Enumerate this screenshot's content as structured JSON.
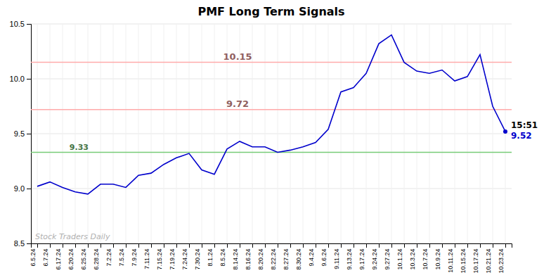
{
  "chart_data": {
    "type": "line",
    "title": "PMF Long Term Signals",
    "color": "#0000cc",
    "grid": true,
    "categories": [
      "6.5.24",
      "6.7.24",
      "6.17.24",
      "6.20.24",
      "6.25.24",
      "6.28.24",
      "7.2.24",
      "7.5.24",
      "7.9.24",
      "7.11.24",
      "7.15.24",
      "7.19.24",
      "7.24.24",
      "7.30.24",
      "8.1.24",
      "8.5.24",
      "8.14.24",
      "8.16.24",
      "8.20.24",
      "8.22.24",
      "8.27.24",
      "8.30.24",
      "9.4.24",
      "9.6.24",
      "9.11.24",
      "9.13.24",
      "9.17.24",
      "9.24.24",
      "9.27.24",
      "10.1.24",
      "10.3.24",
      "10.7.24",
      "10.9.24",
      "10.11.24",
      "10.15.24",
      "10.17.24",
      "10.21.24",
      "10.23.24"
    ],
    "values": [
      9.02,
      9.06,
      9.01,
      8.97,
      8.95,
      9.04,
      9.04,
      9.01,
      9.12,
      9.14,
      9.22,
      9.28,
      9.32,
      9.17,
      9.13,
      9.36,
      9.43,
      9.38,
      9.38,
      9.33,
      9.35,
      9.38,
      9.42,
      9.54,
      9.88,
      9.92,
      10.05,
      10.32,
      10.4,
      10.15,
      10.07,
      10.05,
      10.08,
      9.98,
      10.02,
      10.22,
      9.75,
      9.52
    ],
    "ylim": [
      8.5,
      10.5
    ],
    "yticks": [
      8.5,
      {
        "value": 9,
        "label": "9.0"
      },
      9.5,
      {
        "value": 10,
        "label": "10.0"
      },
      10.5
    ],
    "reference_lines": [
      {
        "value": 10.15,
        "label": "10.15",
        "color": "#ffaaaa"
      },
      {
        "value": 9.72,
        "label": "9.72",
        "color": "#ffaaaa"
      },
      {
        "value": 9.33,
        "label": "9.33",
        "color": "#77cc77"
      }
    ],
    "annotations": {
      "last_time": "15:51",
      "last_value": {
        "value": 9.52,
        "label": "9.52"
      },
      "watermark": "Stock Traders Daily"
    }
  }
}
